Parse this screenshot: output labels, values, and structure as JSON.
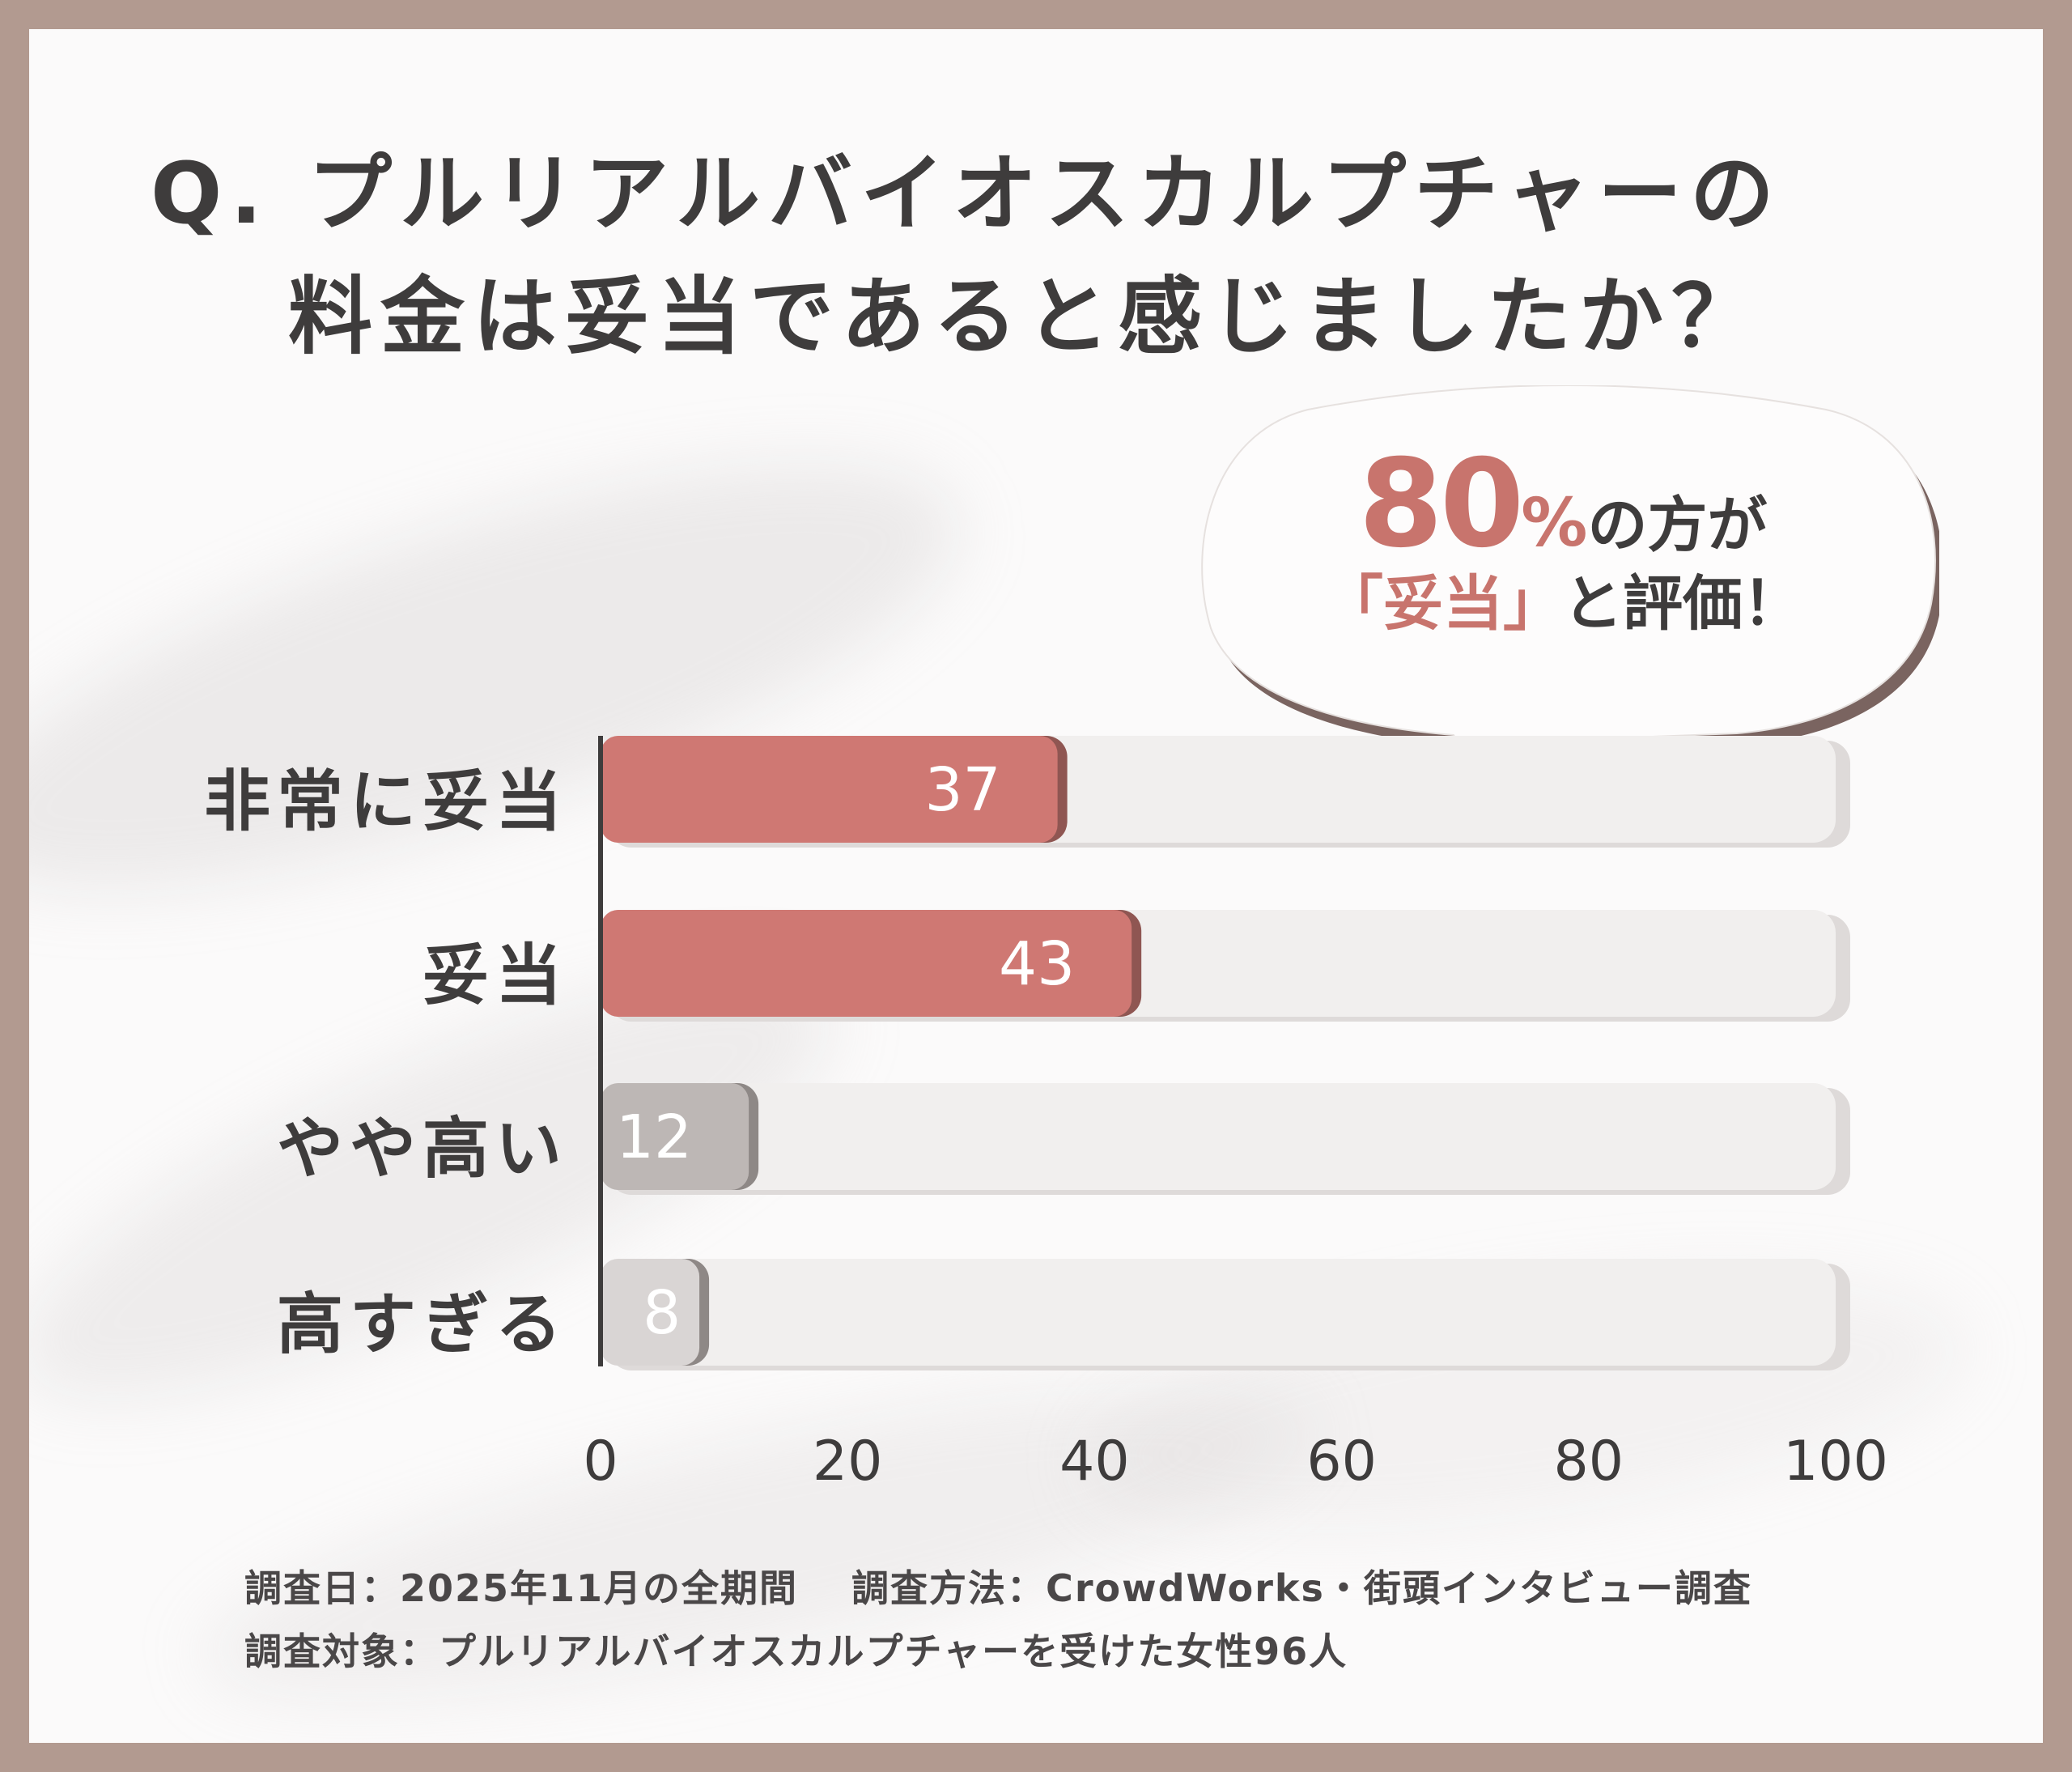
{
  "title": {
    "line1": "Q. プルリアルバイオスカルプチャーの",
    "line2": "料金は妥当であると感じましたか？"
  },
  "callout": {
    "percent_number": "80",
    "percent_sign": "%",
    "line1_suffix": "の方が",
    "quote_open": "「",
    "quote_word": "妥当",
    "quote_close": "」",
    "line2_suffix": "と評価！"
  },
  "colors": {
    "accent": "#cf7873",
    "accent_shadow": "#8f5652",
    "gray_bar": "#bdb7b5",
    "light_gray_bar": "#d9d5d4",
    "track": "#f1efee",
    "frame": "#b29a90"
  },
  "chart_data": {
    "type": "bar",
    "orientation": "horizontal",
    "categories": [
      "非常に妥当",
      "妥当",
      "やや高い",
      "高すぎる"
    ],
    "values": [
      37,
      43,
      12,
      8
    ],
    "value_labels": [
      "37",
      "43",
      "12",
      "8"
    ],
    "xlim": [
      0,
      100
    ],
    "xticks": [
      "0",
      "20",
      "40",
      "60",
      "80",
      "100"
    ],
    "bar_colors": [
      "#cf7873",
      "#cf7873",
      "#bdb7b5",
      "#d9d5d4"
    ],
    "grid": false,
    "legend": "none"
  },
  "footer": {
    "line1": "調査日：2025年11月の全期間　 調査方法：CrowdWorks・街頭インタビュー調査",
    "line2": "調査対象：プルリアルバイオスカルプチャーを受けた女性96人"
  }
}
